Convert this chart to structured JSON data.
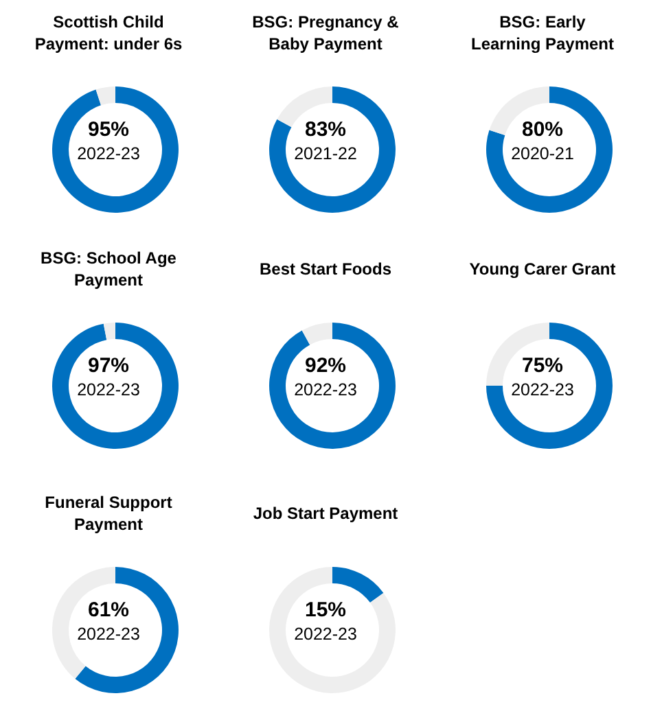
{
  "chart_data": [
    {
      "type": "donut",
      "title": "Scottish Child Payment: under 6s",
      "categories": [
        null,
        null
      ],
      "values": [
        95,
        5
      ],
      "colors": [
        "#0070c0",
        "#eeeeee"
      ],
      "annotations": [
        "95%",
        "2022-23"
      ]
    },
    {
      "type": "donut",
      "title": "BSG: Pregnancy & Baby Payment",
      "categories": [
        null,
        null
      ],
      "values": [
        83,
        17
      ],
      "colors": [
        "#0070c0",
        "#eeeeee"
      ],
      "annotations": [
        "83%",
        "2021-22"
      ]
    },
    {
      "type": "donut",
      "title": "BSG: Early Learning Payment",
      "categories": [
        null,
        null
      ],
      "values": [
        80,
        20
      ],
      "colors": [
        "#0070c0",
        "#eeeeee"
      ],
      "annotations": [
        "80%",
        "2020-21"
      ]
    },
    {
      "type": "donut",
      "title": "BSG: School Age Payment",
      "categories": [
        null,
        null
      ],
      "values": [
        97,
        3
      ],
      "colors": [
        "#0070c0",
        "#eeeeee"
      ],
      "annotations": [
        "97%",
        "2022-23"
      ]
    },
    {
      "type": "donut",
      "title": "Best Start Foods",
      "categories": [
        null,
        null
      ],
      "values": [
        92,
        8
      ],
      "colors": [
        "#0070c0",
        "#eeeeee"
      ],
      "annotations": [
        "92%",
        "2022-23"
      ]
    },
    {
      "type": "donut",
      "title": "Young Carer Grant",
      "categories": [
        null,
        null
      ],
      "values": [
        75,
        25
      ],
      "colors": [
        "#0070c0",
        "#eeeeee"
      ],
      "annotations": [
        "75%",
        "2022-23"
      ]
    },
    {
      "type": "donut",
      "title": "Funeral Support Payment",
      "categories": [
        null,
        null
      ],
      "values": [
        61,
        39
      ],
      "colors": [
        "#0070c0",
        "#eeeeee"
      ],
      "annotations": [
        "61%",
        "2022-23"
      ]
    },
    {
      "type": "donut",
      "title": "Job Start Payment",
      "categories": [
        null,
        null
      ],
      "values": [
        15,
        85
      ],
      "colors": [
        "#0070c0",
        "#eeeeee"
      ],
      "annotations": [
        "15%",
        "2022-23"
      ]
    }
  ]
}
